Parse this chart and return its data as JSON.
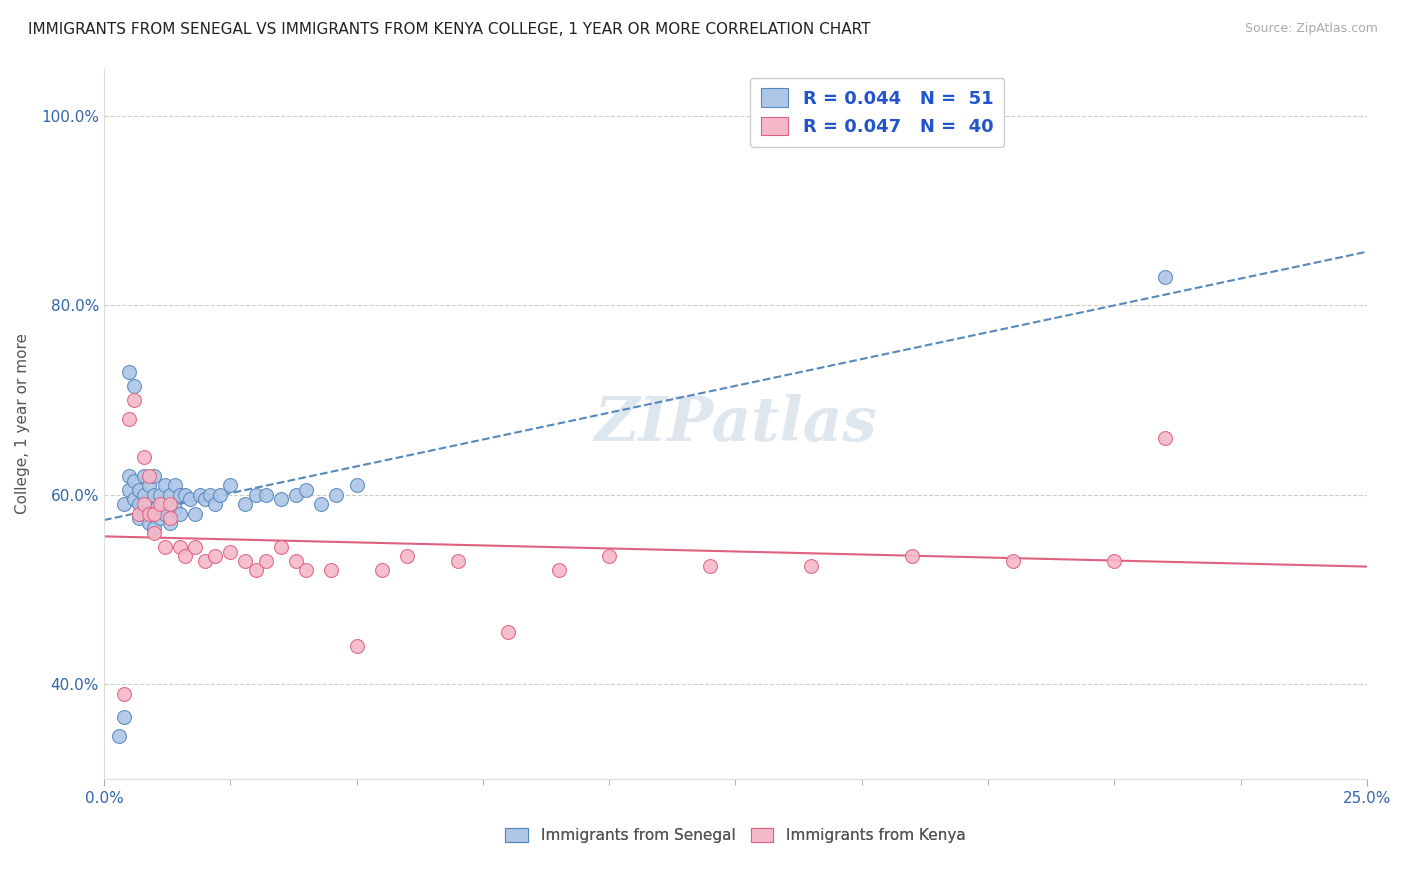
{
  "title": "IMMIGRANTS FROM SENEGAL VS IMMIGRANTS FROM KENYA COLLEGE, 1 YEAR OR MORE CORRELATION CHART",
  "source": "Source: ZipAtlas.com",
  "ylabel": "College, 1 year or more",
  "xlim": [
    0.0,
    0.25
  ],
  "ylim": [
    0.3,
    1.05
  ],
  "xtick_labels": [
    "0.0%",
    "25.0%"
  ],
  "ytick_labels": [
    "40.0%",
    "60.0%",
    "80.0%",
    "100.0%"
  ],
  "ytick_positions": [
    0.4,
    0.6,
    0.8,
    1.0
  ],
  "legend1_r": "0.044",
  "legend1_n": "51",
  "legend2_r": "0.047",
  "legend2_n": "40",
  "color_senegal": "#aec6e8",
  "color_kenya": "#f4b8c8",
  "color_line_senegal": "#5588bb",
  "color_line_kenya": "#e06080",
  "watermark": "ZIPatlas",
  "senegal_x": [
    0.003,
    0.004,
    0.004,
    0.005,
    0.005,
    0.005,
    0.006,
    0.006,
    0.006,
    0.007,
    0.007,
    0.007,
    0.008,
    0.008,
    0.008,
    0.009,
    0.009,
    0.009,
    0.01,
    0.01,
    0.01,
    0.01,
    0.011,
    0.011,
    0.012,
    0.012,
    0.013,
    0.013,
    0.014,
    0.014,
    0.015,
    0.015,
    0.016,
    0.017,
    0.018,
    0.019,
    0.02,
    0.021,
    0.022,
    0.023,
    0.025,
    0.028,
    0.03,
    0.032,
    0.035,
    0.038,
    0.04,
    0.043,
    0.046,
    0.05,
    0.21
  ],
  "senegal_y": [
    0.345,
    0.365,
    0.59,
    0.605,
    0.62,
    0.73,
    0.595,
    0.615,
    0.715,
    0.575,
    0.59,
    0.605,
    0.58,
    0.6,
    0.62,
    0.57,
    0.59,
    0.61,
    0.565,
    0.585,
    0.6,
    0.62,
    0.575,
    0.6,
    0.58,
    0.61,
    0.57,
    0.6,
    0.585,
    0.61,
    0.58,
    0.6,
    0.6,
    0.595,
    0.58,
    0.6,
    0.595,
    0.6,
    0.59,
    0.6,
    0.61,
    0.59,
    0.6,
    0.6,
    0.595,
    0.6,
    0.605,
    0.59,
    0.6,
    0.61,
    0.83
  ],
  "kenya_x": [
    0.004,
    0.005,
    0.006,
    0.007,
    0.008,
    0.008,
    0.009,
    0.009,
    0.01,
    0.01,
    0.011,
    0.012,
    0.013,
    0.013,
    0.015,
    0.016,
    0.018,
    0.02,
    0.022,
    0.025,
    0.028,
    0.03,
    0.032,
    0.035,
    0.038,
    0.04,
    0.045,
    0.05,
    0.055,
    0.06,
    0.07,
    0.08,
    0.09,
    0.1,
    0.12,
    0.14,
    0.16,
    0.18,
    0.2,
    0.21
  ],
  "kenya_y": [
    0.39,
    0.68,
    0.7,
    0.58,
    0.59,
    0.64,
    0.58,
    0.62,
    0.58,
    0.56,
    0.59,
    0.545,
    0.575,
    0.59,
    0.545,
    0.535,
    0.545,
    0.53,
    0.535,
    0.54,
    0.53,
    0.52,
    0.53,
    0.545,
    0.53,
    0.52,
    0.52,
    0.44,
    0.52,
    0.535,
    0.53,
    0.455,
    0.52,
    0.535,
    0.525,
    0.525,
    0.535,
    0.53,
    0.53,
    0.66
  ],
  "grid_color": "#cccccc",
  "spine_color": "#dddddd",
  "tick_color": "#3366aa"
}
